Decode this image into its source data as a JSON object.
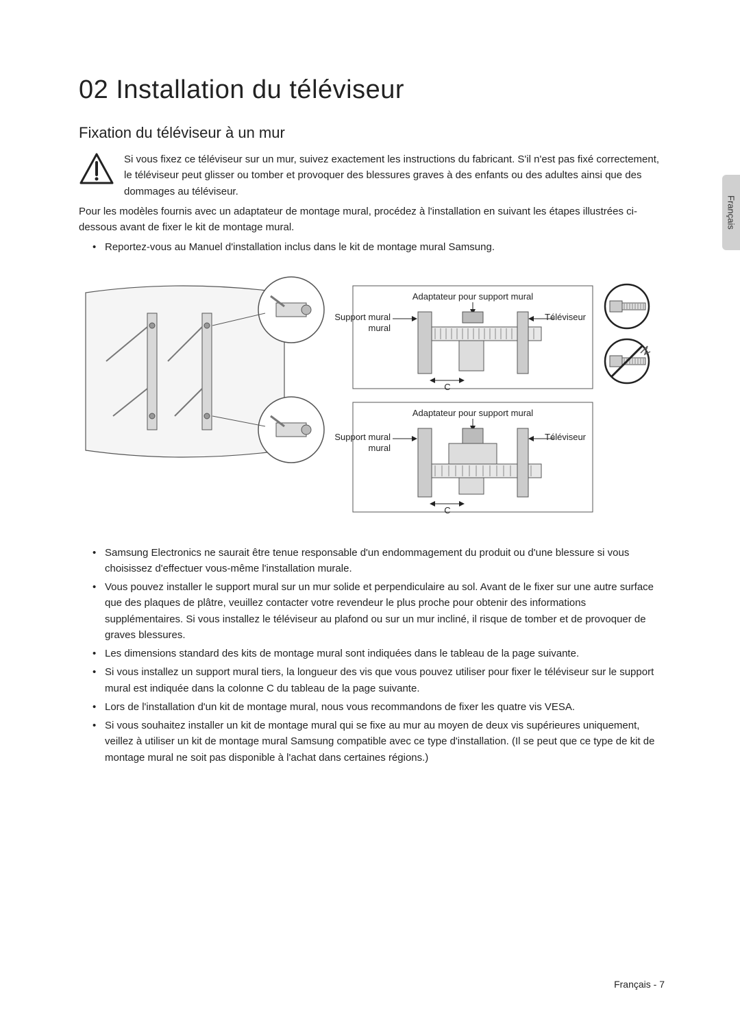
{
  "language_tab": "Français",
  "chapter_title": "02  Installation du téléviseur",
  "section_title": "Fixation du téléviseur à un mur",
  "warning_paragraph": "Si vous fixez ce téléviseur sur un mur, suivez exactement les instructions du fabricant. S'il n'est pas fixé correctement, le téléviseur peut glisser ou tomber et provoquer des blessures graves à des enfants ou des adultes ainsi que des dommages au téléviseur.",
  "intro_paragraph": "Pour les modèles fournis avec un adaptateur de montage mural, procédez à l'installation en suivant les étapes illustrées ci-dessous avant de fixer le kit de montage mural.",
  "intro_bullet": "Reportez-vous au Manuel d'installation inclus dans le kit de montage mural Samsung.",
  "figure": {
    "labels": {
      "adapter": "Adaptateur pour support mural",
      "bracket": "Support mural",
      "tv": "Téléviseur",
      "c_label": "C"
    },
    "colors": {
      "stroke": "#333333",
      "fill_light": "#e0e0e0",
      "fill_mid": "#bcbcbc",
      "accent_red": "#c0392b",
      "background": "#ffffff"
    }
  },
  "bullets_main": [
    "Samsung Electronics ne saurait être tenue responsable d'un endommagement du produit ou d'une blessure si vous choisissez d'effectuer vous-même l'installation murale.",
    "Vous pouvez installer le support mural sur un mur solide et perpendiculaire au sol. Avant de le fixer sur une autre surface que des plaques de plâtre, veuillez contacter votre revendeur le plus proche pour obtenir des informations supplémentaires. Si vous installez le téléviseur au plafond ou sur un mur incliné, il risque de tomber et de provoquer de graves blessures.",
    "Les dimensions standard des kits de montage mural sont indiquées dans le tableau de la page suivante.",
    "Si vous installez un support mural tiers, la longueur des vis que vous pouvez utiliser pour fixer le téléviseur sur le support mural est indiquée dans la colonne C du tableau de la page suivante.",
    "Lors de l'installation d'un kit de montage mural, nous vous recommandons de fixer les quatre vis VESA.",
    "Si vous souhaitez installer un kit de montage mural qui se fixe au mur au moyen de deux vis supérieures uniquement, veillez à utiliser un kit de montage mural Samsung compatible avec ce type d'installation. (Il se peut que ce type de kit de montage mural ne soit pas disponible à l'achat dans certaines régions.)"
  ],
  "footer": "Français - 7",
  "typography": {
    "chapter_fontsize_pt": 28,
    "section_fontsize_pt": 16,
    "body_fontsize_pt": 11,
    "line_height": 1.55
  }
}
